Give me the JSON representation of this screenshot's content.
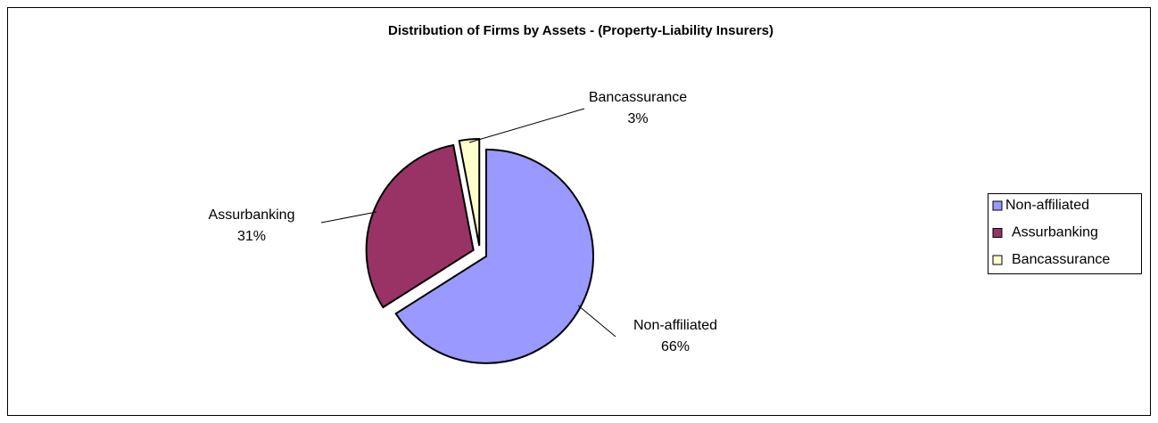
{
  "chart_data": {
    "type": "pie",
    "title": "Distribution of Firms by Assets - (Property-Liability Insurers)",
    "categories": [
      "Non-affiliated",
      "Assurbanking",
      "Bancassurance"
    ],
    "values": [
      66,
      31,
      3
    ],
    "value_labels": [
      "66%",
      "31%",
      "3%"
    ],
    "colors": [
      "#9999ff",
      "#993366",
      "#ffffcc"
    ],
    "legend": "right"
  }
}
